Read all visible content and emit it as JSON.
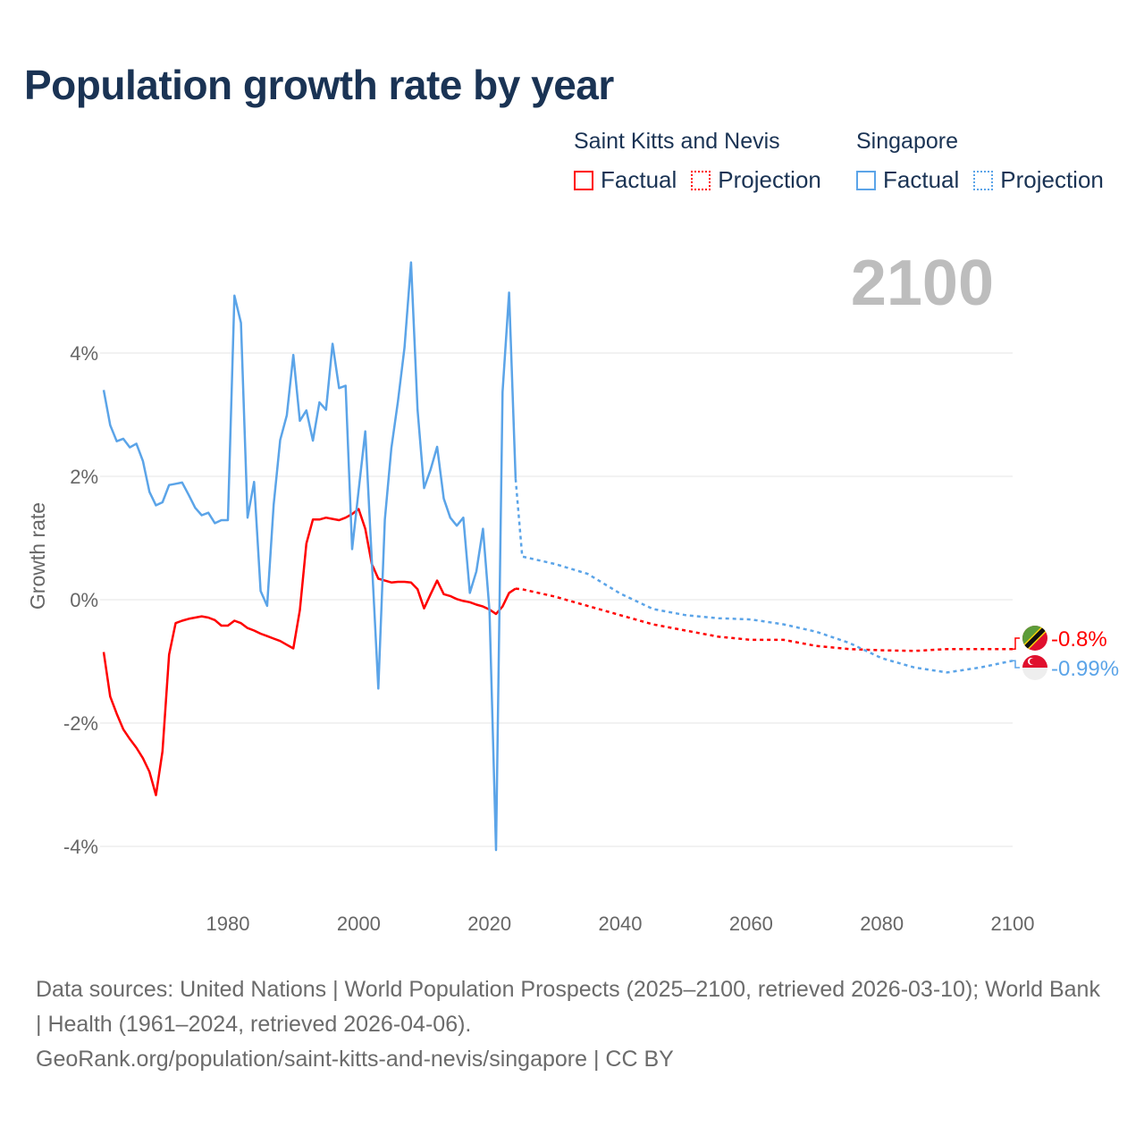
{
  "title": "Population growth rate by year",
  "year_label": "2100",
  "legend": {
    "groups": [
      {
        "name": "Saint Kitts and Nevis",
        "factual": "Factual",
        "projection": "Projection",
        "color": "#ff0000"
      },
      {
        "name": "Singapore",
        "factual": "Factual",
        "projection": "Projection",
        "color": "#5ba4e8"
      }
    ]
  },
  "footer": {
    "sources": "Data sources: United Nations | World Population Prospects (2025–2100, retrieved 2026-03-10); World Bank | Health (1961–2024, retrieved 2026-04-06).",
    "link": "GeoRank.org/population/saint-kitts-and-nevis/singapore | CC BY"
  },
  "chart_data": {
    "type": "line",
    "title": "Population growth rate by year",
    "xlabel": "",
    "ylabel": "Growth rate",
    "xlim": [
      1961,
      2100
    ],
    "ylim": [
      -5,
      5.6
    ],
    "x_ticks": [
      "1980",
      "2000",
      "2020",
      "2040",
      "2060",
      "2080",
      "2100"
    ],
    "x_tick_values": [
      1980,
      2000,
      2020,
      2040,
      2060,
      2080,
      2100
    ],
    "y_ticks": [
      "4%",
      "2%",
      "0%",
      "-2%",
      "-4%"
    ],
    "y_tick_values": [
      4,
      2,
      0,
      -2,
      -4
    ],
    "grid": true,
    "legend_position": "top-right",
    "series": [
      {
        "name": "Saint Kitts and Nevis",
        "color": "#ff0000",
        "end_label": "-0.8%",
        "factual": {
          "start_year": 1961,
          "values": [
            -0.85,
            -1.57,
            -1.85,
            -2.1,
            -2.26,
            -2.4,
            -2.57,
            -2.79,
            -3.17,
            -2.46,
            -0.89,
            -0.38,
            -0.34,
            -0.31,
            -0.29,
            -0.27,
            -0.29,
            -0.33,
            -0.42,
            -0.42,
            -0.34,
            -0.38,
            -0.46,
            -0.5,
            -0.55,
            -0.59,
            -0.63,
            -0.67,
            -0.73,
            -0.79,
            -0.17,
            0.91,
            1.3,
            1.3,
            1.33,
            1.31,
            1.29,
            1.33,
            1.39,
            1.47,
            1.15,
            0.58,
            0.34,
            0.31,
            0.28,
            0.29,
            0.29,
            0.28,
            0.17,
            -0.14,
            0.09,
            0.31,
            0.09,
            0.06,
            0.01,
            -0.02,
            -0.04,
            -0.08,
            -0.11,
            -0.16,
            -0.23,
            -0.11,
            0.11,
            0.18
          ]
        },
        "projection": {
          "years": [
            2024,
            2025,
            2030,
            2035,
            2040,
            2045,
            2050,
            2055,
            2060,
            2065,
            2070,
            2075,
            2080,
            2085,
            2090,
            2095,
            2100
          ],
          "values": [
            0.18,
            0.17,
            0.05,
            -0.1,
            -0.25,
            -0.4,
            -0.5,
            -0.6,
            -0.65,
            -0.65,
            -0.75,
            -0.8,
            -0.82,
            -0.83,
            -0.8,
            -0.8,
            -0.8
          ]
        }
      },
      {
        "name": "Singapore",
        "color": "#5ba4e8",
        "end_label": "-0.99%",
        "factual": {
          "start_year": 1961,
          "values": [
            3.4,
            2.83,
            2.57,
            2.61,
            2.47,
            2.53,
            2.25,
            1.75,
            1.53,
            1.58,
            1.86,
            1.88,
            1.9,
            1.7,
            1.49,
            1.37,
            1.41,
            1.24,
            1.29,
            1.29,
            4.93,
            4.49,
            1.33,
            1.91,
            0.14,
            -0.1,
            1.54,
            2.59,
            2.99,
            3.97,
            2.9,
            3.07,
            2.58,
            3.2,
            3.08,
            4.15,
            3.43,
            3.47,
            0.82,
            1.78,
            2.73,
            0.64,
            -1.44,
            1.3,
            2.46,
            3.21,
            4.09,
            5.47,
            3.08,
            1.81,
            2.11,
            2.48,
            1.64,
            1.33,
            1.2,
            1.33,
            0.11,
            0.46,
            1.15,
            -0.18,
            -4.06,
            3.37,
            4.98,
            1.96
          ]
        },
        "projection": {
          "years": [
            2024,
            2025,
            2030,
            2035,
            2040,
            2045,
            2050,
            2055,
            2060,
            2065,
            2070,
            2075,
            2080,
            2085,
            2090,
            2095,
            2100
          ],
          "values": [
            1.96,
            0.7,
            0.58,
            0.42,
            0.1,
            -0.15,
            -0.25,
            -0.3,
            -0.32,
            -0.4,
            -0.52,
            -0.7,
            -0.95,
            -1.1,
            -1.18,
            -1.1,
            -0.99
          ]
        }
      }
    ]
  }
}
